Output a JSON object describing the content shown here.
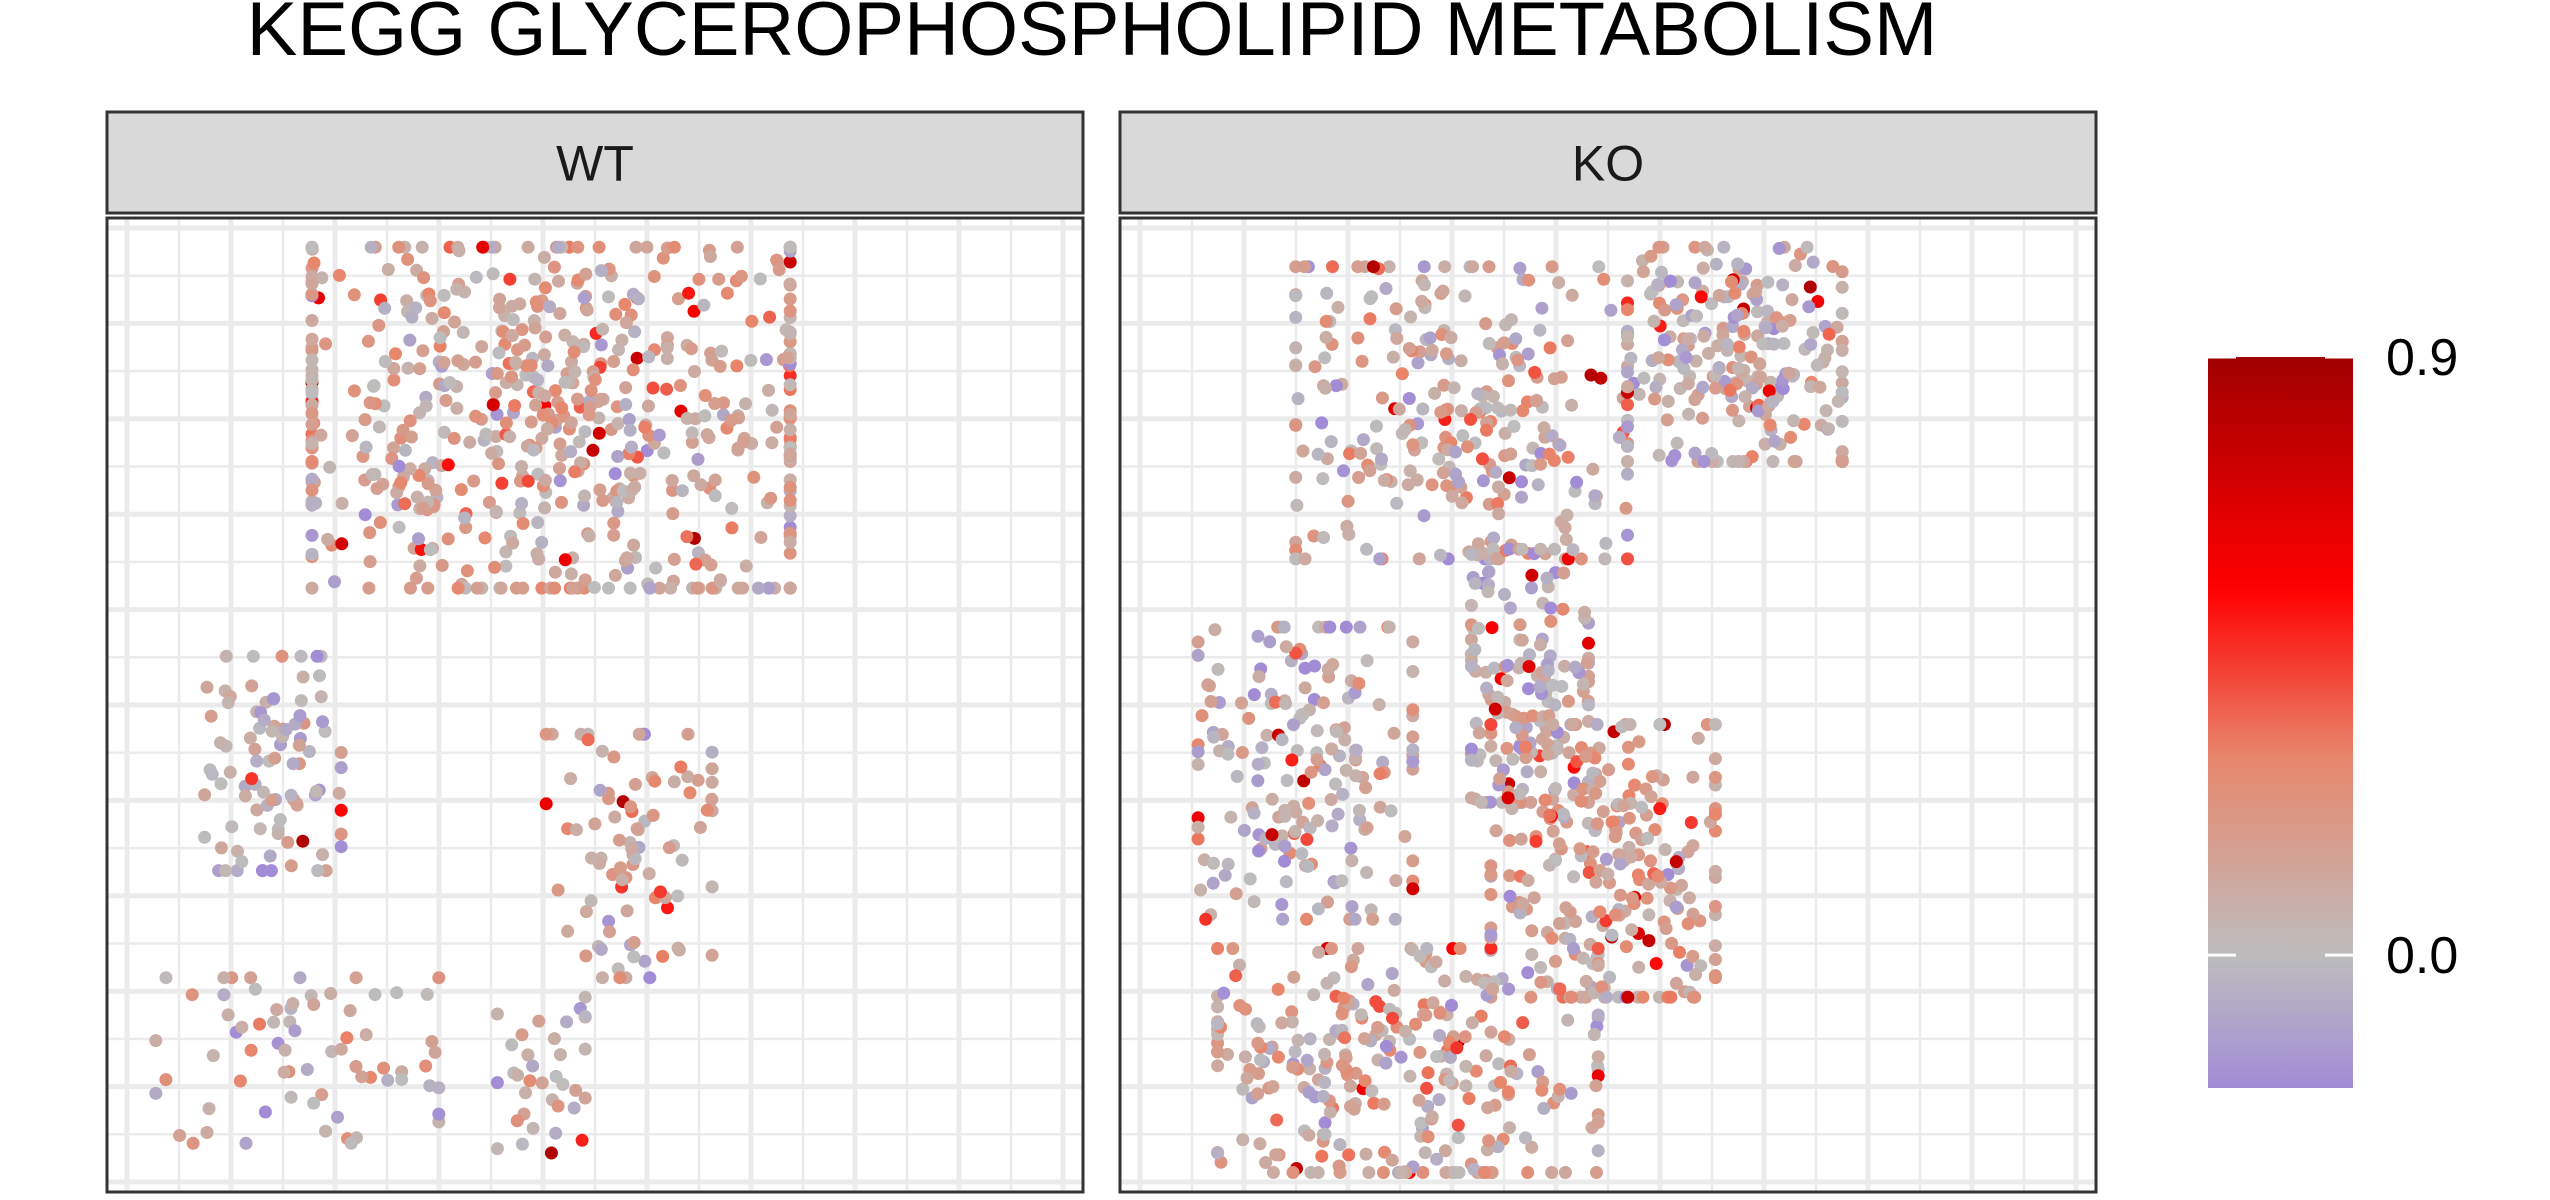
{
  "chart_data": {
    "type": "scatter",
    "title": "KEGG GLYCEROPHOSPHOLIPID METABOLISM",
    "xlabel": "",
    "ylabel": "",
    "grid": true,
    "legend_position": "right",
    "color_scale": {
      "min": -0.2,
      "max": 0.9,
      "tick_labels": [
        "0.9",
        "0.0"
      ],
      "tick_values": [
        0.9,
        0.0
      ],
      "colors": {
        "low": "#a28cd6",
        "mid": "#bdbdbd",
        "mid_high": "#e8866b",
        "high_mid": "#ff0000",
        "high": "#a00000"
      }
    },
    "panels": [
      {
        "name": "WT",
        "clusters": [
          {
            "region": "top-upper",
            "x": [
              0.21,
              0.7
            ],
            "y": [
              0.62,
              0.97
            ],
            "n": 620,
            "value_mean": 0.12
          },
          {
            "region": "left-arc",
            "x": [
              0.1,
              0.24
            ],
            "y": [
              0.33,
              0.55
            ],
            "n": 95,
            "value_mean": 0.02
          },
          {
            "region": "right-arc",
            "x": [
              0.45,
              0.62
            ],
            "y": [
              0.22,
              0.47
            ],
            "n": 90,
            "value_mean": 0.1
          },
          {
            "region": "bottom-left",
            "x": [
              0.05,
              0.34
            ],
            "y": [
              0.05,
              0.22
            ],
            "n": 70,
            "value_mean": 0.05
          },
          {
            "region": "bottom-center",
            "x": [
              0.4,
              0.49
            ],
            "y": [
              0.04,
              0.2
            ],
            "n": 35,
            "value_mean": 0.08
          }
        ]
      },
      {
        "name": "KO",
        "clusters": [
          {
            "region": "top-left",
            "x": [
              0.18,
              0.52
            ],
            "y": [
              0.65,
              0.95
            ],
            "n": 280,
            "value_mean": 0.08
          },
          {
            "region": "top-right",
            "x": [
              0.52,
              0.74
            ],
            "y": [
              0.75,
              0.97
            ],
            "n": 240,
            "value_mean": 0.05
          },
          {
            "region": "center-neck",
            "x": [
              0.36,
              0.48
            ],
            "y": [
              0.4,
              0.66
            ],
            "n": 160,
            "value_mean": 0.02
          },
          {
            "region": "left-arc",
            "x": [
              0.08,
              0.3
            ],
            "y": [
              0.28,
              0.58
            ],
            "n": 190,
            "value_mean": 0.04
          },
          {
            "region": "right-cluster",
            "x": [
              0.38,
              0.61
            ],
            "y": [
              0.2,
              0.48
            ],
            "n": 260,
            "value_mean": 0.14
          },
          {
            "region": "bottom",
            "x": [
              0.1,
              0.49
            ],
            "y": [
              0.02,
              0.25
            ],
            "n": 300,
            "value_mean": 0.1
          }
        ]
      }
    ]
  }
}
